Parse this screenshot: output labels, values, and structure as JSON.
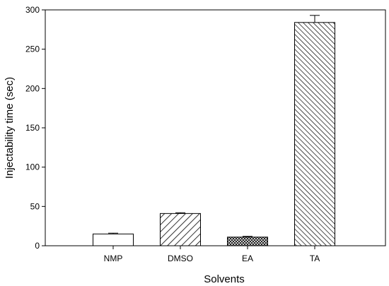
{
  "chart_data": {
    "type": "bar",
    "title": "",
    "xlabel": "Solvents",
    "ylabel": "Injectability time (sec)",
    "categories": [
      "NMP",
      "DMSO",
      "EA",
      "TA"
    ],
    "values": [
      15,
      41,
      11,
      284
    ],
    "errors": [
      1,
      1,
      1,
      9
    ],
    "fills": [
      "none",
      "diagonal-hatch",
      "crosshatch",
      "diagonal-hatch-dense"
    ],
    "ylim": [
      0,
      300
    ],
    "yticks": [
      0,
      50,
      100,
      150,
      200,
      250,
      300
    ],
    "grid": false,
    "legend": "none"
  }
}
